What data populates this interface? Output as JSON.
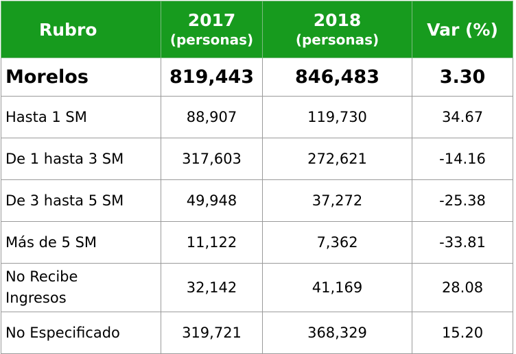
{
  "table": {
    "headers": {
      "rubro": "Rubro",
      "year_2017": "2017",
      "year_2018": "2018",
      "unit": "(personas)",
      "var": "Var (%)"
    },
    "total": {
      "label": "Morelos",
      "v2017": "819,443",
      "v2018": "846,483",
      "var": "3.30"
    },
    "rows": [
      {
        "label": "Hasta 1 SM",
        "v2017": "88,907",
        "v2018": "119,730",
        "var": "34.67"
      },
      {
        "label": "De 1 hasta 3 SM",
        "v2017": "317,603",
        "v2018": "272,621",
        "var": "-14.16"
      },
      {
        "label": "De 3 hasta 5 SM",
        "v2017": "49,948",
        "v2018": "37,272",
        "var": "-25.38"
      },
      {
        "label": "Más de 5 SM",
        "v2017": "11,122",
        "v2018": "7,362",
        "var": "-33.81"
      },
      {
        "label_line1": "No Recibe",
        "label_line2": "Ingresos",
        "v2017": "32,142",
        "v2018": "41,169",
        "var": "28.08"
      },
      {
        "label": "No Especificado",
        "v2017": "319,721",
        "v2018": "368,329",
        "var": "15.20"
      }
    ]
  }
}
